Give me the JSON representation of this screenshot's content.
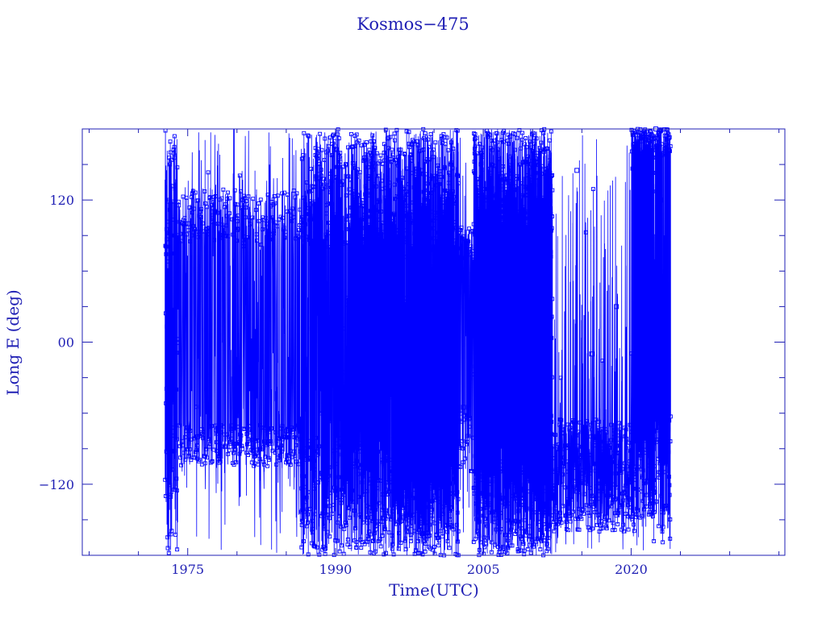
{
  "chart_data": {
    "type": "scatter",
    "title": "Kosmos−475",
    "xlabel": "Time(UTC)",
    "ylabel": "Long E (deg)",
    "x_ticks": [
      1975,
      1990,
      2005,
      2020
    ],
    "x_tick_labels": [
      "1975",
      "1990",
      "2005",
      "2020"
    ],
    "y_ticks": [
      120,
      0,
      -120
    ],
    "y_tick_labels": [
      "120",
      "00",
      "−120"
    ],
    "xlim": [
      1964.3,
      2035.6
    ],
    "ylim": [
      -180,
      180
    ],
    "grid": false,
    "marker": "square",
    "line_connected": true,
    "colors": {
      "axis": "#1f1fb4",
      "series": "#0000ff"
    },
    "series": [
      {
        "segments": [
          {
            "x_range": [
              1972.7,
              1974.0
            ],
            "density": 70,
            "bands": [
              [
                -180,
                180
              ]
            ]
          },
          {
            "x_range": [
              1974.0,
              1986.5
            ],
            "density": 28,
            "bands": [
              [
                85,
                130
              ],
              [
                -105,
                -70
              ]
            ],
            "span_fraction": 0.7
          },
          {
            "x_range": [
              1986.5,
              1992.5
            ],
            "density": 60,
            "bands": [
              [
                80,
                180
              ],
              [
                -180,
                -80
              ]
            ],
            "span_fraction": 0.8
          },
          {
            "x_range": [
              1992.5,
              2002.5
            ],
            "density": 80,
            "bands": [
              [
                65,
                180
              ],
              [
                -180,
                -95
              ]
            ],
            "span_fraction": 0.85
          },
          {
            "x_range": [
              2002.5,
              2004.0
            ],
            "density": 30,
            "bands": [
              [
                60,
                100
              ],
              [
                -110,
                -60
              ]
            ],
            "span_fraction": 0.6
          },
          {
            "x_range": [
              2004.0,
              2012.0
            ],
            "density": 120,
            "bands": [
              [
                60,
                180
              ],
              [
                -180,
                -75
              ]
            ],
            "span_fraction": 0.95
          },
          {
            "x_range": [
              2012.0,
              2020.0
            ],
            "density": 35,
            "bands": [
              [
                -160,
                -65
              ]
            ],
            "span_fraction": 0.5
          },
          {
            "x_range": [
              2020.0,
              2024.0
            ],
            "density": 70,
            "bands": [
              [
                155,
                180
              ],
              [
                -150,
                -60
              ]
            ],
            "span_fraction": 0.7
          }
        ],
        "sample_points": [
          {
            "x": 1975.0,
            "y": 100
          },
          {
            "x": 1977.5,
            "y": 110
          },
          {
            "x": 1980.0,
            "y": 95
          },
          {
            "x": 1983.5,
            "y": 118
          },
          {
            "x": 1976.0,
            "y": -80
          },
          {
            "x": 1980.5,
            "y": -90
          },
          {
            "x": 1985.0,
            "y": -75
          },
          {
            "x": 1990.5,
            "y": 85
          },
          {
            "x": 1995.0,
            "y": 70
          },
          {
            "x": 2000.0,
            "y": 78
          },
          {
            "x": 1999.0,
            "y": -62
          },
          {
            "x": 2003.0,
            "y": -55
          },
          {
            "x": 2016.0,
            "y": -10
          },
          {
            "x": 2018.5,
            "y": 30
          },
          {
            "x": 2021.5,
            "y": 40
          },
          {
            "x": 2022.5,
            "y": 180
          },
          {
            "x": 2023.0,
            "y": 120
          },
          {
            "x": 2014.5,
            "y": 145
          }
        ]
      }
    ]
  }
}
